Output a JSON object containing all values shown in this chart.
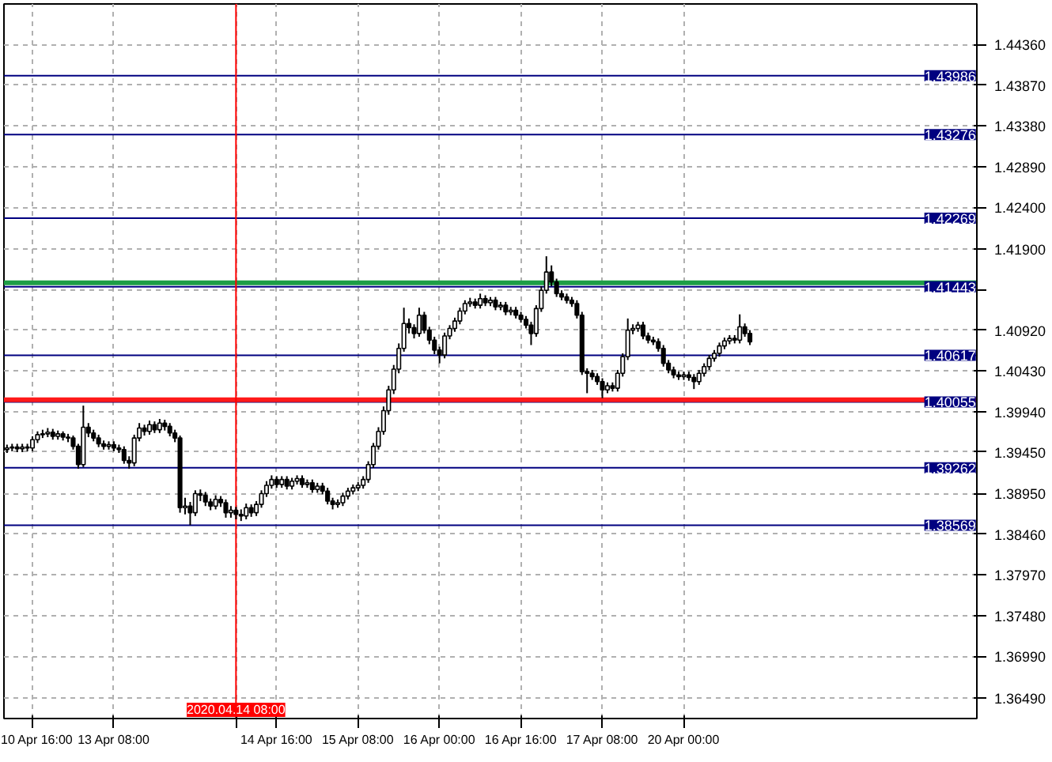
{
  "chart_data": {
    "type": "candlestick",
    "categories": [
      null,
      null,
      null,
      null,
      null,
      "10 Apr 16:00",
      null,
      null,
      null,
      null,
      null,
      null,
      null,
      null,
      null,
      null,
      null,
      null,
      null,
      null,
      null,
      "13 Apr 08:00",
      null,
      null,
      null,
      null,
      null,
      null,
      null,
      null,
      null,
      null,
      null,
      null,
      null,
      null,
      null,
      null,
      null,
      null,
      null,
      null,
      null,
      null,
      null,
      "2020.04.14 08:00",
      null,
      null,
      null,
      null,
      null,
      null,
      null,
      "14 Apr 16:00",
      null,
      null,
      null,
      null,
      null,
      null,
      null,
      null,
      null,
      null,
      null,
      null,
      null,
      null,
      null,
      "15 Apr 08:00",
      null,
      null,
      null,
      null,
      null,
      null,
      null,
      null,
      null,
      null,
      null,
      null,
      null,
      null,
      null,
      "16 Apr 00:00",
      null,
      null,
      null,
      null,
      null,
      null,
      null,
      null,
      null,
      null,
      null,
      null,
      null,
      null,
      null,
      "16 Apr 16:00",
      null,
      null,
      null,
      null,
      null,
      null,
      null,
      null,
      null,
      null,
      null,
      null,
      null,
      null,
      null,
      "17 Apr 08:00",
      null,
      null,
      null,
      null,
      null,
      null,
      null,
      null,
      null,
      null,
      null,
      null,
      null,
      null,
      null,
      "20 Apr 00:00",
      null,
      null,
      null,
      null,
      null,
      null,
      null,
      null,
      null,
      null,
      null,
      null,
      null,
      null,
      null,
      null,
      null,
      null,
      null,
      null,
      null,
      null,
      null,
      null,
      null,
      null,
      null,
      null,
      null,
      null,
      null,
      null,
      null,
      null,
      null,
      null,
      null,
      null,
      null,
      null,
      null,
      null,
      null,
      null,
      null,
      null,
      null,
      null,
      null,
      null,
      null,
      null,
      null,
      null,
      null,
      null,
      null
    ],
    "ohlc": [
      [
        1.3948,
        1.3954,
        1.3944,
        1.395
      ],
      [
        1.395,
        1.3955,
        1.3946,
        1.3951
      ],
      [
        1.3951,
        1.3955,
        1.3945,
        1.3949
      ],
      [
        1.3949,
        1.3955,
        1.3945,
        1.3951
      ],
      [
        1.3951,
        1.3955,
        1.3946,
        1.395
      ],
      [
        1.395,
        1.3964,
        1.3946,
        1.396
      ],
      [
        1.396,
        1.397,
        1.3956,
        1.3966
      ],
      [
        1.3966,
        1.3972,
        1.3962,
        1.3967
      ],
      [
        1.3967,
        1.3974,
        1.3963,
        1.3969
      ],
      [
        1.3969,
        1.3973,
        1.396,
        1.3964
      ],
      [
        1.3964,
        1.3971,
        1.396,
        1.3967
      ],
      [
        1.3967,
        1.397,
        1.3959,
        1.3963
      ],
      [
        1.3963,
        1.3967,
        1.3957,
        1.3962
      ],
      [
        1.3962,
        1.3965,
        1.3948,
        1.3952
      ],
      [
        1.3952,
        1.3955,
        1.3925,
        1.393
      ],
      [
        1.393,
        1.4001,
        1.3927,
        1.3975
      ],
      [
        1.3975,
        1.398,
        1.3963,
        1.3968
      ],
      [
        1.3968,
        1.3972,
        1.3958,
        1.3962
      ],
      [
        1.3962,
        1.3966,
        1.3951,
        1.3955
      ],
      [
        1.3955,
        1.3959,
        1.3948,
        1.3952
      ],
      [
        1.3952,
        1.3958,
        1.3948,
        1.3954
      ],
      [
        1.3954,
        1.3958,
        1.3946,
        1.395
      ],
      [
        1.395,
        1.3954,
        1.3944,
        1.3948
      ],
      [
        1.3948,
        1.3952,
        1.3931,
        1.3935
      ],
      [
        1.3935,
        1.394,
        1.3925,
        1.3932
      ],
      [
        1.3932,
        1.3966,
        1.3928,
        1.3962
      ],
      [
        1.3962,
        1.398,
        1.3958,
        1.3974
      ],
      [
        1.3974,
        1.3978,
        1.3965,
        1.397
      ],
      [
        1.397,
        1.3983,
        1.3966,
        1.3978
      ],
      [
        1.3978,
        1.3982,
        1.3968,
        1.3972
      ],
      [
        1.3972,
        1.3985,
        1.3968,
        1.398
      ],
      [
        1.398,
        1.3984,
        1.3971,
        1.3976
      ],
      [
        1.3976,
        1.398,
        1.3964,
        1.3968
      ],
      [
        1.3968,
        1.3972,
        1.3957,
        1.3962
      ],
      [
        1.3962,
        1.3965,
        1.3872,
        1.3878
      ],
      [
        1.3878,
        1.389,
        1.387,
        1.388
      ],
      [
        1.388,
        1.3885,
        1.3857,
        1.3872
      ],
      [
        1.3872,
        1.3899,
        1.3868,
        1.3895
      ],
      [
        1.3895,
        1.39,
        1.3886,
        1.3893
      ],
      [
        1.3893,
        1.3897,
        1.388,
        1.3885
      ],
      [
        1.3885,
        1.3889,
        1.3875,
        1.388
      ],
      [
        1.388,
        1.3893,
        1.3876,
        1.3888
      ],
      [
        1.3888,
        1.3892,
        1.3879,
        1.3884
      ],
      [
        1.3884,
        1.3888,
        1.3866,
        1.3872
      ],
      [
        1.3872,
        1.388,
        1.3866,
        1.3875
      ],
      [
        1.3875,
        1.3879,
        1.3864,
        1.387
      ],
      [
        1.387,
        1.3876,
        1.3862,
        1.3868
      ],
      [
        1.3868,
        1.3883,
        1.3864,
        1.3878
      ],
      [
        1.3878,
        1.3882,
        1.3867,
        1.3872
      ],
      [
        1.3872,
        1.3886,
        1.3868,
        1.3882
      ],
      [
        1.3882,
        1.3899,
        1.3878,
        1.3895
      ],
      [
        1.3895,
        1.391,
        1.3891,
        1.3905
      ],
      [
        1.3905,
        1.3917,
        1.3901,
        1.3912
      ],
      [
        1.3912,
        1.3916,
        1.3902,
        1.3906
      ],
      [
        1.3906,
        1.3916,
        1.3902,
        1.3912
      ],
      [
        1.3912,
        1.3916,
        1.39,
        1.3904
      ],
      [
        1.3904,
        1.3914,
        1.39,
        1.391
      ],
      [
        1.391,
        1.3917,
        1.3906,
        1.3913
      ],
      [
        1.3913,
        1.3917,
        1.3902,
        1.3906
      ],
      [
        1.3906,
        1.3912,
        1.3902,
        1.3908
      ],
      [
        1.3908,
        1.3912,
        1.3896,
        1.39
      ],
      [
        1.39,
        1.3908,
        1.3896,
        1.3904
      ],
      [
        1.3904,
        1.3908,
        1.3894,
        1.3898
      ],
      [
        1.3898,
        1.3902,
        1.3882,
        1.3886
      ],
      [
        1.3886,
        1.389,
        1.3876,
        1.3882
      ],
      [
        1.3882,
        1.3888,
        1.3878,
        1.3884
      ],
      [
        1.3884,
        1.3896,
        1.388,
        1.3892
      ],
      [
        1.3892,
        1.3902,
        1.3888,
        1.3898
      ],
      [
        1.3898,
        1.3906,
        1.3894,
        1.3902
      ],
      [
        1.3902,
        1.3909,
        1.3898,
        1.3905
      ],
      [
        1.3905,
        1.3916,
        1.3901,
        1.3912
      ],
      [
        1.3912,
        1.3934,
        1.3908,
        1.393
      ],
      [
        1.393,
        1.3956,
        1.3926,
        1.3952
      ],
      [
        1.3952,
        1.3975,
        1.3948,
        1.397
      ],
      [
        1.397,
        1.4,
        1.3966,
        1.3995
      ],
      [
        1.3995,
        1.4025,
        1.399,
        1.402
      ],
      [
        1.402,
        1.405,
        1.4015,
        1.4045
      ],
      [
        1.4045,
        1.4076,
        1.404,
        1.407
      ],
      [
        1.407,
        1.4119,
        1.4066,
        1.41
      ],
      [
        1.41,
        1.4106,
        1.4088,
        1.4095
      ],
      [
        1.4095,
        1.4099,
        1.4082,
        1.4088
      ],
      [
        1.4088,
        1.4119,
        1.4084,
        1.411
      ],
      [
        1.411,
        1.4114,
        1.4088,
        1.4092
      ],
      [
        1.4092,
        1.4096,
        1.4075,
        1.408
      ],
      [
        1.408,
        1.4084,
        1.4063,
        1.4068
      ],
      [
        1.4068,
        1.4072,
        1.4052,
        1.4062
      ],
      [
        1.4062,
        1.4089,
        1.4058,
        1.4085
      ],
      [
        1.4085,
        1.4098,
        1.4081,
        1.4094
      ],
      [
        1.4094,
        1.4107,
        1.409,
        1.4103
      ],
      [
        1.4103,
        1.4119,
        1.4099,
        1.4115
      ],
      [
        1.4115,
        1.4128,
        1.4111,
        1.4124
      ],
      [
        1.4124,
        1.4131,
        1.412,
        1.4126
      ],
      [
        1.4126,
        1.413,
        1.4118,
        1.4122
      ],
      [
        1.4122,
        1.4136,
        1.4118,
        1.413
      ],
      [
        1.413,
        1.4134,
        1.4121,
        1.4125
      ],
      [
        1.4125,
        1.4132,
        1.4121,
        1.4128
      ],
      [
        1.4128,
        1.4132,
        1.4116,
        1.412
      ],
      [
        1.412,
        1.4126,
        1.4116,
        1.4122
      ],
      [
        1.4122,
        1.4126,
        1.411,
        1.4114
      ],
      [
        1.4114,
        1.412,
        1.411,
        1.4116
      ],
      [
        1.4116,
        1.412,
        1.4106,
        1.411
      ],
      [
        1.411,
        1.4114,
        1.4101,
        1.4105
      ],
      [
        1.4105,
        1.4109,
        1.4094,
        1.4098
      ],
      [
        1.4098,
        1.4102,
        1.4074,
        1.4088
      ],
      [
        1.4088,
        1.4122,
        1.4084,
        1.4118
      ],
      [
        1.4118,
        1.4145,
        1.4114,
        1.414
      ],
      [
        1.414,
        1.4181,
        1.4136,
        1.4162
      ],
      [
        1.4162,
        1.417,
        1.4145,
        1.415
      ],
      [
        1.415,
        1.4154,
        1.4132,
        1.4136
      ],
      [
        1.4136,
        1.414,
        1.4128,
        1.4132
      ],
      [
        1.4132,
        1.4136,
        1.4124,
        1.4128
      ],
      [
        1.4128,
        1.4132,
        1.412,
        1.4124
      ],
      [
        1.4124,
        1.4128,
        1.4106,
        1.411
      ],
      [
        1.411,
        1.4114,
        1.4038,
        1.4042
      ],
      [
        1.4042,
        1.4046,
        1.4016,
        1.404
      ],
      [
        1.404,
        1.4044,
        1.4032,
        1.4036
      ],
      [
        1.4036,
        1.404,
        1.4026,
        1.403
      ],
      [
        1.403,
        1.4034,
        1.401,
        1.402
      ],
      [
        1.402,
        1.4029,
        1.4016,
        1.4025
      ],
      [
        1.4025,
        1.4029,
        1.4018,
        1.4022
      ],
      [
        1.4022,
        1.4044,
        1.4018,
        1.404
      ],
      [
        1.404,
        1.4064,
        1.4036,
        1.406
      ],
      [
        1.406,
        1.4106,
        1.4056,
        1.4092
      ],
      [
        1.4092,
        1.4099,
        1.4087,
        1.4094
      ],
      [
        1.4094,
        1.4102,
        1.409,
        1.4098
      ],
      [
        1.4098,
        1.4102,
        1.4081,
        1.4085
      ],
      [
        1.4085,
        1.4089,
        1.4076,
        1.408
      ],
      [
        1.408,
        1.4084,
        1.4074,
        1.4078
      ],
      [
        1.4078,
        1.4082,
        1.4066,
        1.407
      ],
      [
        1.407,
        1.4074,
        1.4048,
        1.4052
      ],
      [
        1.4052,
        1.4056,
        1.404,
        1.4044
      ],
      [
        1.4044,
        1.4048,
        1.4034,
        1.4038
      ],
      [
        1.4038,
        1.4042,
        1.4032,
        1.4036
      ],
      [
        1.4036,
        1.4042,
        1.4032,
        1.4038
      ],
      [
        1.4038,
        1.4042,
        1.4031,
        1.4035
      ],
      [
        1.4035,
        1.4039,
        1.4021,
        1.403
      ],
      [
        1.403,
        1.4044,
        1.4026,
        1.404
      ],
      [
        1.404,
        1.4052,
        1.4036,
        1.4048
      ],
      [
        1.4048,
        1.4062,
        1.4044,
        1.4058
      ],
      [
        1.4058,
        1.4068,
        1.4054,
        1.4064
      ],
      [
        1.4064,
        1.4077,
        1.406,
        1.4073
      ],
      [
        1.4073,
        1.4083,
        1.4069,
        1.4079
      ],
      [
        1.4079,
        1.4086,
        1.4075,
        1.4082
      ],
      [
        1.4082,
        1.4086,
        1.4076,
        1.408
      ],
      [
        1.408,
        1.4111,
        1.4076,
        1.4096
      ],
      [
        1.4096,
        1.41,
        1.4084,
        1.4088
      ],
      [
        1.4088,
        1.4092,
        1.4074,
        1.4078
      ],
      null,
      null,
      null,
      null,
      null,
      null,
      null,
      null,
      null,
      null,
      null,
      null,
      null,
      null,
      null,
      null,
      null,
      null,
      null,
      null,
      null,
      null,
      null,
      null,
      null,
      null,
      null,
      null,
      null,
      null,
      null,
      null,
      null,
      null,
      null,
      null,
      null,
      null,
      null,
      null,
      null,
      null,
      null,
      null
    ],
    "ylim": [
      1.3624,
      1.4485
    ],
    "yticks": [
      {
        "value": 1.4436,
        "label": "1.44360"
      },
      {
        "value": 1.4387,
        "label": "1.43870"
      },
      {
        "value": 1.4338,
        "label": "1.43380"
      },
      {
        "value": 1.4289,
        "label": "1.42890"
      },
      {
        "value": 1.424,
        "label": "1.42400"
      },
      {
        "value": 1.419,
        "label": "1.41900"
      },
      {
        "value": 1.4141,
        "label": null
      },
      {
        "value": 1.4092,
        "label": "1.40920"
      },
      {
        "value": 1.4043,
        "label": "1.40430"
      },
      {
        "value": 1.3994,
        "label": "1.39940"
      },
      {
        "value": 1.3945,
        "label": "1.39450"
      },
      {
        "value": 1.3895,
        "label": "1.38950"
      },
      {
        "value": 1.3846,
        "label": "1.38460"
      },
      {
        "value": 1.3797,
        "label": "1.37970"
      },
      {
        "value": 1.3748,
        "label": "1.37480"
      },
      {
        "value": 1.3699,
        "label": "1.36990"
      },
      {
        "value": 1.3649,
        "label": "1.36490"
      }
    ],
    "ref_lines": [
      {
        "axis": "y",
        "value": 1.43986,
        "label": "1.43986",
        "color": "#000080"
      },
      {
        "axis": "y",
        "value": 1.43276,
        "label": "1.43276",
        "color": "#000080"
      },
      {
        "axis": "y",
        "value": 1.42269,
        "label": "1.42269",
        "color": "#000080"
      },
      {
        "axis": "y",
        "value": 1.41443,
        "label": "1.41443",
        "color": "#000080"
      },
      {
        "axis": "y",
        "value": 1.40617,
        "label": "1.40617",
        "color": "#000080"
      },
      {
        "axis": "y",
        "value": 1.40055,
        "label": "1.40055",
        "color": "#000080"
      },
      {
        "axis": "y",
        "value": 1.39262,
        "label": "1.39262",
        "color": "#000080"
      },
      {
        "axis": "y",
        "value": 1.38569,
        "label": "1.38569",
        "color": "#000080"
      },
      {
        "axis": "y",
        "value": 1.4149,
        "color": "#1e9e46"
      },
      {
        "axis": "y",
        "value": 1.4008,
        "color": "#ff1a1a"
      },
      {
        "axis": "x",
        "value": "2020.04.14 08:00",
        "color": "#ff0000"
      }
    ],
    "grid": true
  }
}
